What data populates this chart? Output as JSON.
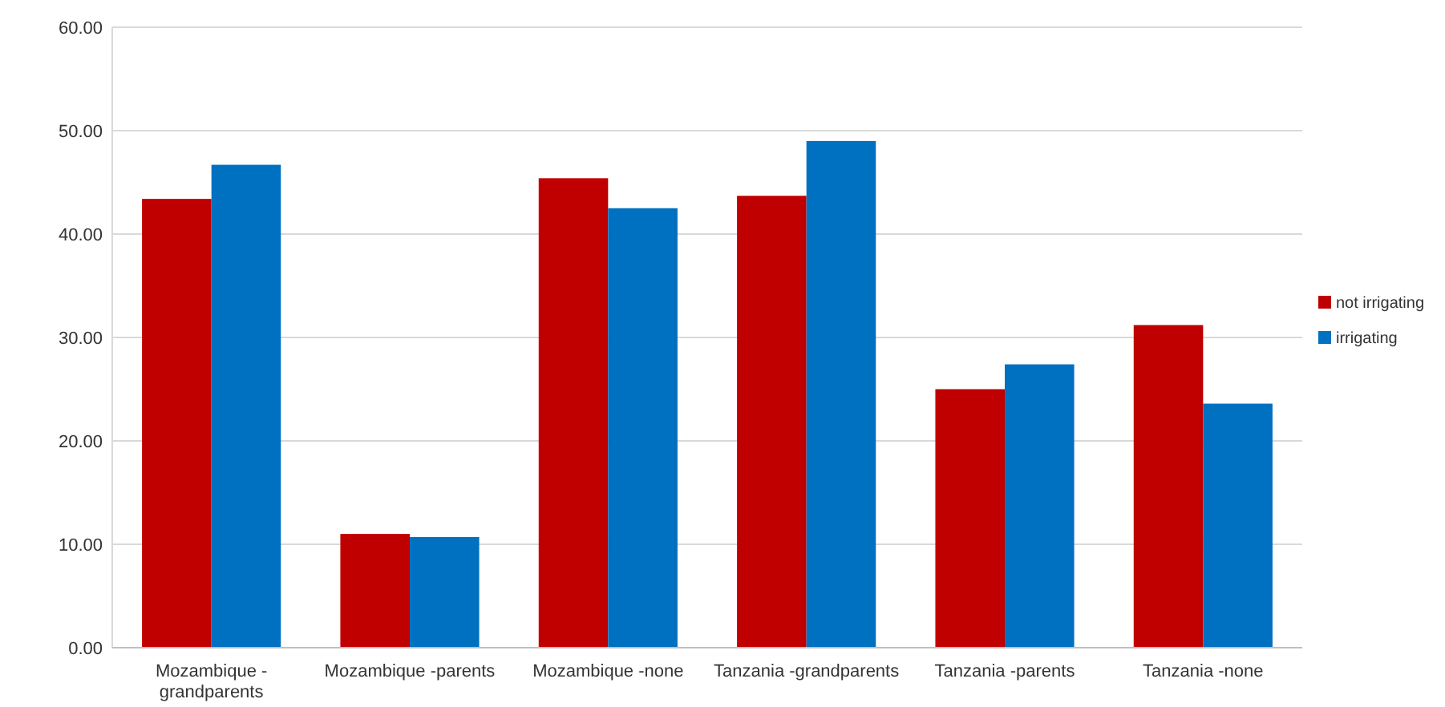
{
  "chart_data": {
    "type": "bar",
    "categories": [
      "Mozambique - grandparents",
      "Mozambique -parents",
      "Mozambique -none",
      "Tanzania -grandparents",
      "Tanzania -parents",
      "Tanzania -none"
    ],
    "series": [
      {
        "name": "not irrigating",
        "color": "#c00000",
        "values": [
          43.4,
          11.0,
          45.4,
          43.7,
          25.0,
          31.2
        ]
      },
      {
        "name": "irrigating",
        "color": "#0070c0",
        "values": [
          46.7,
          10.7,
          42.5,
          49.0,
          27.4,
          23.6
        ]
      }
    ],
    "ylim": [
      0,
      60
    ],
    "yticks": [
      {
        "value": 0,
        "label": "0.00"
      },
      {
        "value": 10,
        "label": "10.00"
      },
      {
        "value": 20,
        "label": "20.00"
      },
      {
        "value": 30,
        "label": "30.00"
      },
      {
        "value": 40,
        "label": "40.00"
      },
      {
        "value": 50,
        "label": "50.00"
      },
      {
        "value": 60,
        "label": "60.00"
      }
    ],
    "grid": "y",
    "legend": "right"
  }
}
